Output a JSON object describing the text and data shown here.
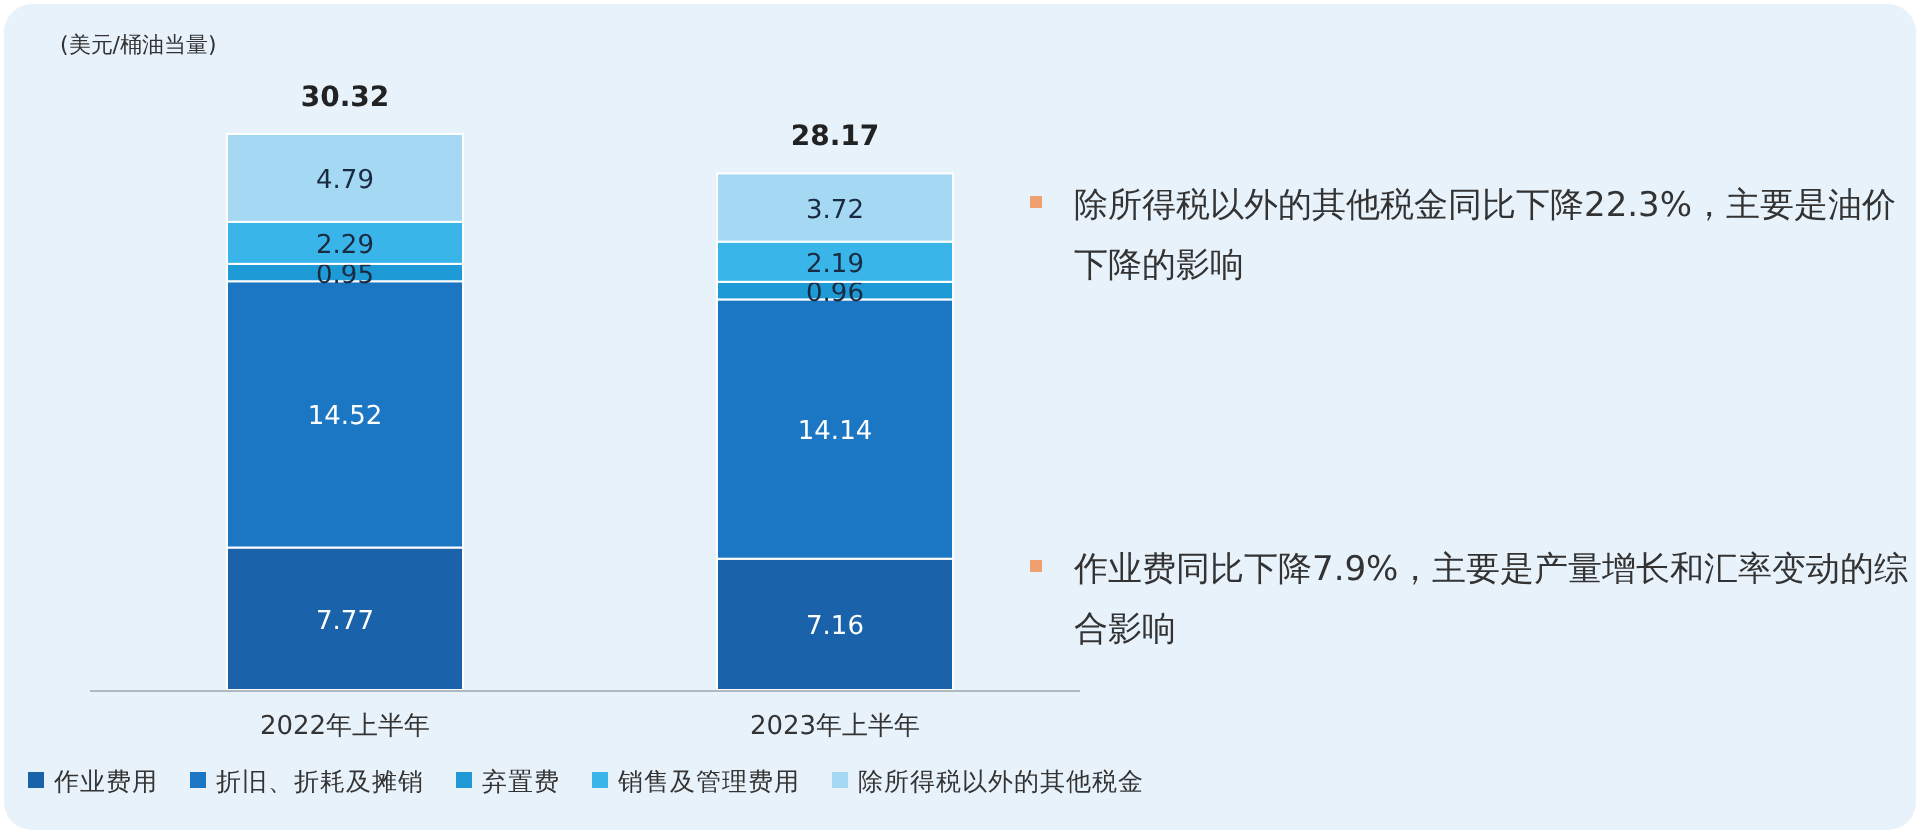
{
  "chart_data": {
    "type": "bar",
    "stacked": true,
    "data_labels": true,
    "legend": "bottom left",
    "ylabel": "(美元/桶油当量)",
    "categories": [
      "2022年上半年",
      "2023年上半年"
    ],
    "series": [
      {
        "name": "作业费用",
        "color": "#1a62aa",
        "values": [
          7.77,
          7.16
        ]
      },
      {
        "name": "折旧、折耗及摊销",
        "color": "#1b77c4",
        "values": [
          14.52,
          14.14
        ]
      },
      {
        "name": "弃置费",
        "color": "#1e9ad6",
        "values": [
          0.95,
          0.96
        ]
      },
      {
        "name": "销售及管理费用",
        "color": "#3ab5ea",
        "values": [
          2.29,
          2.19
        ]
      },
      {
        "name": "除所得税以外的其他税金",
        "color": "#a5d8f3",
        "values": [
          4.79,
          3.72
        ]
      }
    ],
    "totals": [
      "30.32",
      "28.17"
    ],
    "annotations": [
      "除所得税以外的其他税金同比下降22.3%，主要是油价下降的影响",
      "作业费同比下降7.9%，主要是产量增长和汇率变动的综合影响"
    ]
  }
}
